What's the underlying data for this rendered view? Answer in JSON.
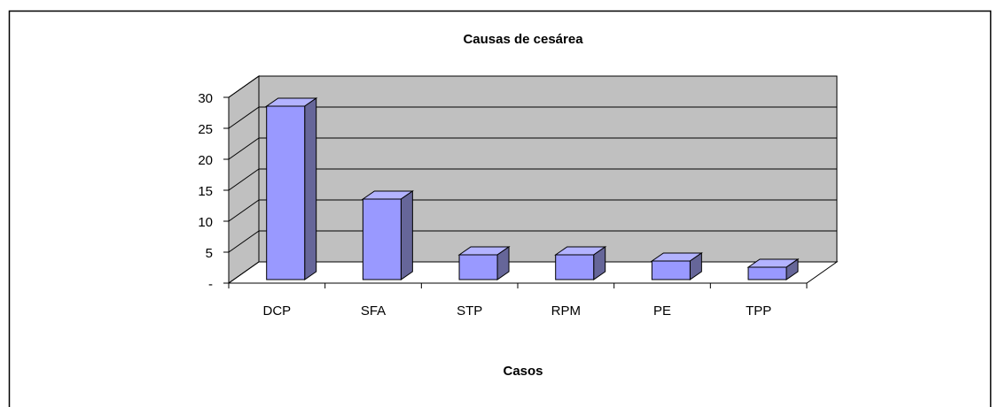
{
  "chart_data": {
    "type": "bar",
    "title": "Causas de cesárea",
    "x_label": "Casos",
    "categories": [
      "DCP",
      "SFA",
      "STP",
      "RPM",
      "PE",
      "TPP"
    ],
    "values": [
      28,
      13,
      4,
      4,
      3,
      2
    ],
    "color": "#9999ff",
    "ylim": [
      0,
      30
    ],
    "yticks": [
      {
        "value": 0,
        "label": "-"
      },
      5,
      10,
      15,
      20,
      25,
      30
    ],
    "grid": true
  }
}
